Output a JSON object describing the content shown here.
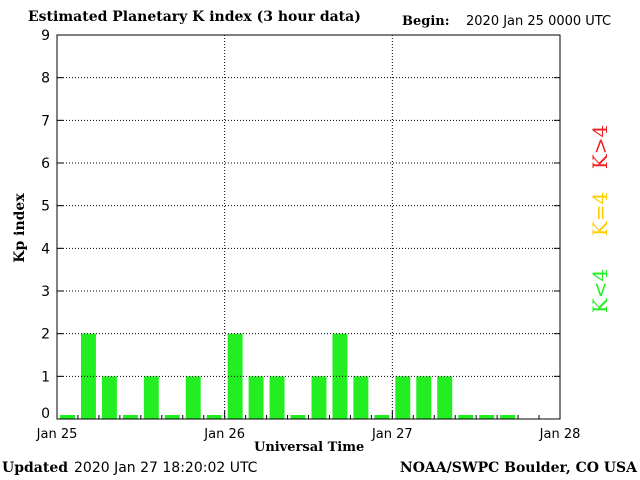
{
  "header": {
    "title": "Estimated Planetary K index (3 hour data)",
    "begin_label": "Begin:",
    "begin_value": "2020 Jan 25 0000 UTC"
  },
  "footer": {
    "updated_label": "Updated",
    "updated_value": "2020 Jan 27 18:20:02 UTC",
    "credit": "NOAA/SWPC Boulder, CO USA"
  },
  "legend": {
    "below": {
      "label": "K<4",
      "color": "#22ee22"
    },
    "equal": {
      "label": "K=4",
      "color": "#ffcc00"
    },
    "above": {
      "label": "K>4",
      "color": "#ee2222"
    }
  },
  "chart_data": {
    "type": "bar",
    "title": "Estimated Planetary K index (3 hour data)",
    "xlabel": "Universal Time",
    "ylabel": "Kp index",
    "ylim": [
      0,
      9
    ],
    "yticks": [
      0,
      1,
      2,
      3,
      4,
      5,
      6,
      7,
      8,
      9
    ],
    "xticks": [
      "Jan 25",
      "Jan 26",
      "Jan 27",
      "Jan 28"
    ],
    "bar_color": "#22ee22",
    "values": [
      0,
      2,
      1,
      0,
      1,
      0,
      1,
      0,
      2,
      1,
      1,
      0,
      1,
      2,
      1,
      0,
      1,
      1,
      1,
      0,
      0,
      0
    ],
    "grid": true
  }
}
